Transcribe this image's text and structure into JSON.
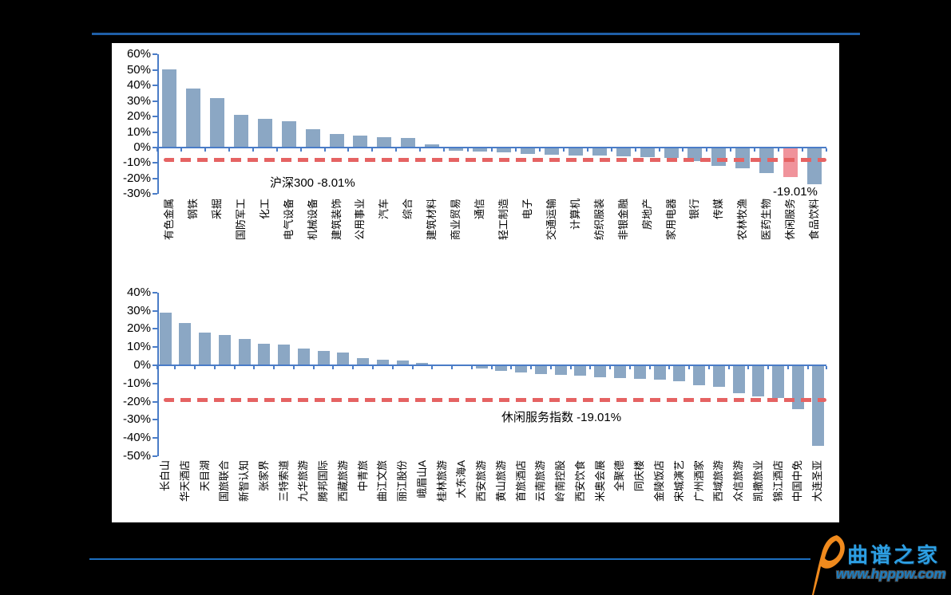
{
  "watermark": {
    "site_name": "曲谱之家",
    "site_url": "www.hpppw.com"
  },
  "colors": {
    "page_bg": "#000000",
    "panel_bg": "#ffffff",
    "bar_blue": "#8ba7c4",
    "highlight_pink": "#f0939b",
    "dash_red": "#e56363",
    "axis_blue": "#4a7cc7",
    "top_rule": "#1f5fa8",
    "bottom_rule": "#1d6fc0",
    "logo_orange": "#f08a1d",
    "logo_blue": "#2d9fe3",
    "url_blue": "#1b7ec2"
  },
  "chart_data": [
    {
      "type": "bar",
      "title": "",
      "categories": [
        "有色金属",
        "钢铁",
        "采掘",
        "国防军工",
        "化工",
        "电气设备",
        "机械设备",
        "建筑装饰",
        "公用事业",
        "汽车",
        "综合",
        "建筑材料",
        "商业贸易",
        "通信",
        "轻工制造",
        "电子",
        "交通运输",
        "计算机",
        "纺织服装",
        "非银金融",
        "房地产",
        "家用电器",
        "银行",
        "传媒",
        "农林牧渔",
        "医药生物",
        "休闲服务",
        "食品饮料"
      ],
      "values": [
        50.5,
        38.3,
        32.0,
        20.9,
        18.4,
        16.9,
        11.8,
        8.7,
        7.5,
        6.9,
        6.1,
        2.3,
        -2.0,
        -2.7,
        -3.2,
        -3.9,
        -4.4,
        -5.0,
        -5.4,
        -5.8,
        -6.2,
        -6.6,
        -8.7,
        -11.9,
        -13.2,
        -16.5,
        -19.01,
        -23.5
      ],
      "bar_color": "#8ba7c4",
      "highlight": {
        "category": "休闲服务",
        "index": 26,
        "color": "#f0939b"
      },
      "benchmark_line": {
        "label": "沪深300 -8.01%",
        "value": -8.01,
        "color": "#e56363",
        "style": "dashed"
      },
      "annotation": {
        "text": "-19.01%",
        "refers_to": "休闲服务"
      },
      "xlabel": "",
      "ylabel": "",
      "ylim": [
        -30,
        60
      ],
      "ytick_step": 10,
      "ytick_format": "percent",
      "grid": false,
      "legend": "none"
    },
    {
      "type": "bar",
      "title": "",
      "categories": [
        "长白山",
        "华天酒店",
        "天目湖",
        "国旅联合",
        "新智认知",
        "张家界",
        "三特索道",
        "九华旅游",
        "腾邦国际",
        "西藏旅游",
        "中青旅",
        "曲江文旅",
        "丽江股份",
        "峨眉山A",
        "桂林旅游",
        "大东海A",
        "西安旅游",
        "黄山旅游",
        "首旅酒店",
        "云南旅游",
        "岭南控股",
        "西安饮食",
        "米奥会展",
        "全聚德",
        "同庆楼",
        "金陵饭店",
        "宋城演艺",
        "广州酒家",
        "西域旅游",
        "众信旅游",
        "凯撒旅业",
        "锦江酒店",
        "中国中免",
        "大连圣亚"
      ],
      "values": [
        28.8,
        23.1,
        17.9,
        16.6,
        14.5,
        11.9,
        11.6,
        9.2,
        7.9,
        7.1,
        4.0,
        3.2,
        2.5,
        1.1,
        0.4,
        -0.6,
        -1.6,
        -2.9,
        -3.9,
        -4.9,
        -5.2,
        -5.9,
        -6.4,
        -7.0,
        -7.4,
        -7.9,
        -8.6,
        -10.8,
        -11.8,
        -15.5,
        -17.0,
        -18.0,
        -24.0,
        -44.5
      ],
      "bar_color": "#8ba7c4",
      "benchmark_line": {
        "label": "休闲服务指数 -19.01%",
        "value": -19.01,
        "color": "#e56363",
        "style": "dashed"
      },
      "xlabel": "",
      "ylabel": "",
      "ylim": [
        -50,
        40
      ],
      "ytick_step": 10,
      "ytick_format": "percent",
      "grid": false,
      "legend": "none"
    }
  ]
}
